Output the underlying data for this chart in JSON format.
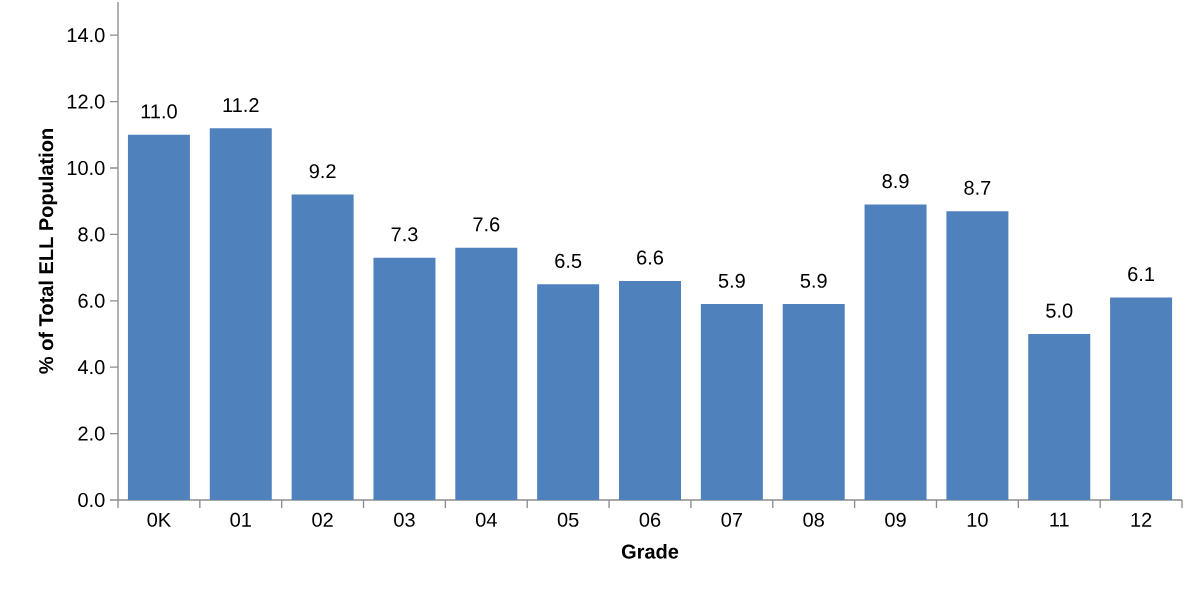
{
  "chart_data": {
    "type": "bar",
    "xlabel": "Grade",
    "ylabel": "% of Total ELL Population",
    "categories": [
      "0K",
      "01",
      "02",
      "03",
      "04",
      "05",
      "06",
      "07",
      "08",
      "09",
      "10",
      "11",
      "12"
    ],
    "values": [
      11.0,
      11.2,
      9.2,
      7.3,
      7.6,
      6.5,
      6.6,
      5.9,
      5.9,
      8.9,
      8.7,
      5.0,
      6.1
    ],
    "value_labels": [
      "11.0",
      "11.2",
      "9.2",
      "7.3",
      "7.6",
      "6.5",
      "6.6",
      "5.9",
      "5.9",
      "8.9",
      "8.7",
      "5.0",
      "6.1"
    ],
    "color": "#4f81bd",
    "ylim": [
      0,
      15
    ],
    "yticks": [
      {
        "value": 0,
        "label": "0.0"
      },
      {
        "value": 2,
        "label": "2.0"
      },
      {
        "value": 4,
        "label": "4.0"
      },
      {
        "value": 6,
        "label": "6.0"
      },
      {
        "value": 8,
        "label": "8.0"
      },
      {
        "value": 10,
        "label": "10.0"
      },
      {
        "value": 12,
        "label": "12.0"
      },
      {
        "value": 14,
        "label": "14.0"
      }
    ],
    "grid": false
  }
}
